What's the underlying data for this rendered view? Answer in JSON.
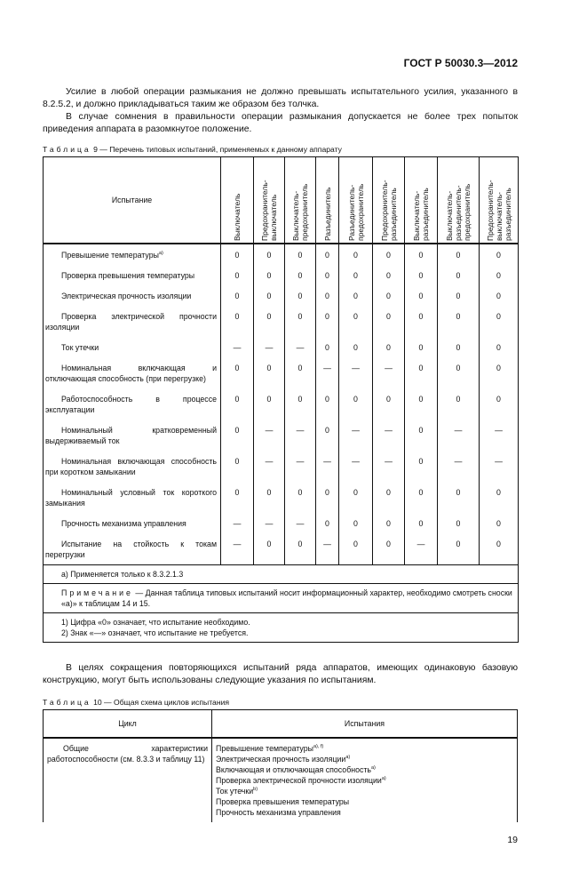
{
  "header": {
    "standard": "ГОСТ Р 50030.3—2012"
  },
  "intro": [
    "Усилие в любой операции размыкания не должно превышать испытательного усилия, указанного в 8.2.5.2, и должно прикладываться таким же образом без толчка.",
    "В случае сомнения в правильности операции размыкания допускается не более трех попыток приведения аппарата в разомкнутое положение."
  ],
  "table9": {
    "caption_prefix": "Таблица",
    "caption": "9 — Перечень типовых испытаний, применяемых к данному аппарату",
    "headers": [
      "Испытание",
      "Выключатель",
      "Предохранитель-выключатель",
      "Выключатель-предохранитель",
      "Разъединитель",
      "Разъединитель-предохранитель",
      "Предохранитель-разъединитель",
      "Выключатель-разъединитель",
      "Выключатель-разъединитель-предохранитель",
      "Предохранитель-выключатель-разъединитель"
    ],
    "rows": [
      {
        "name": "Превышение температуры",
        "sup": "а)",
        "values": [
          "0",
          "0",
          "0",
          "0",
          "0",
          "0",
          "0",
          "0",
          "0"
        ]
      },
      {
        "name": "Проверка превышения температуры",
        "values": [
          "0",
          "0",
          "0",
          "0",
          "0",
          "0",
          "0",
          "0",
          "0"
        ]
      },
      {
        "name": "Электрическая прочность изоляции",
        "values": [
          "0",
          "0",
          "0",
          "0",
          "0",
          "0",
          "0",
          "0",
          "0"
        ]
      },
      {
        "name": "Проверка электрической прочности изоляции",
        "values": [
          "0",
          "0",
          "0",
          "0",
          "0",
          "0",
          "0",
          "0",
          "0"
        ]
      },
      {
        "name": "Ток утечки",
        "values": [
          "—",
          "—",
          "—",
          "0",
          "0",
          "0",
          "0",
          "0",
          "0"
        ]
      },
      {
        "name": "Номинальная включающая и отключающая способность (при перегрузке)",
        "values": [
          "0",
          "0",
          "0",
          "—",
          "—",
          "—",
          "0",
          "0",
          "0"
        ]
      },
      {
        "name": "Работоспособность в процессе эксплуатации",
        "values": [
          "0",
          "0",
          "0",
          "0",
          "0",
          "0",
          "0",
          "0",
          "0"
        ]
      },
      {
        "name": "Номинальный кратковременный выдерживаемый ток",
        "values": [
          "0",
          "—",
          "—",
          "0",
          "—",
          "—",
          "0",
          "—",
          "—"
        ]
      },
      {
        "name": "Номинальная включающая способность при коротком замыкании",
        "values": [
          "0",
          "—",
          "—",
          "—",
          "—",
          "—",
          "0",
          "—",
          "—"
        ]
      },
      {
        "name": "Номинальный условный ток короткого замыкания",
        "values": [
          "0",
          "0",
          "0",
          "0",
          "0",
          "0",
          "0",
          "0",
          "0"
        ]
      },
      {
        "name": "Прочность механизма управления",
        "values": [
          "—",
          "—",
          "—",
          "0",
          "0",
          "0",
          "0",
          "0",
          "0"
        ]
      },
      {
        "name": "Испытание на стойкость к токам перегрузки",
        "values": [
          "—",
          "0",
          "0",
          "—",
          "0",
          "0",
          "—",
          "0",
          "0"
        ]
      }
    ],
    "footnote_a": "а) Применяется только к 8.3.2.1.3",
    "note_label": "Примечание",
    "note": "— Данная таблица типовых испытаний носит информационный характер, необходимо смотреть сноски «а)» к таблицам 14 и 15.",
    "legend": [
      "1) Цифра «0» означает, что испытание необходимо.",
      "2) Знак «—» означает, что испытание не требуется."
    ]
  },
  "para2": "В целях сокращения повторяющихся испытаний ряда аппаратов, имеющих одинаковую базовую конструкцию, могут быть использованы следующие указания по испытаниям.",
  "table10": {
    "caption_prefix": "Таблица",
    "caption": "10 — Общая схема циклов испытания",
    "headers": [
      "Цикл",
      "Испытания"
    ],
    "cycle": "Общие характеристики работоспособности (см. 8.3.3 и таблицу 11)",
    "tests": [
      {
        "t": "Превышение температуры",
        "s": "а), f)"
      },
      {
        "t": "Электрическая прочность изоляции",
        "s": "а)"
      },
      {
        "t": "Включающая и отключающая способность",
        "s": "а)"
      },
      {
        "t": "Проверка электрической прочности изоляции",
        "s": "а)"
      },
      {
        "t": "Ток утечки",
        "s": "b)"
      },
      {
        "t": "Проверка превышения температуры",
        "s": ""
      },
      {
        "t": "Прочность механизма управления",
        "s": ""
      }
    ]
  },
  "page_number": "19"
}
